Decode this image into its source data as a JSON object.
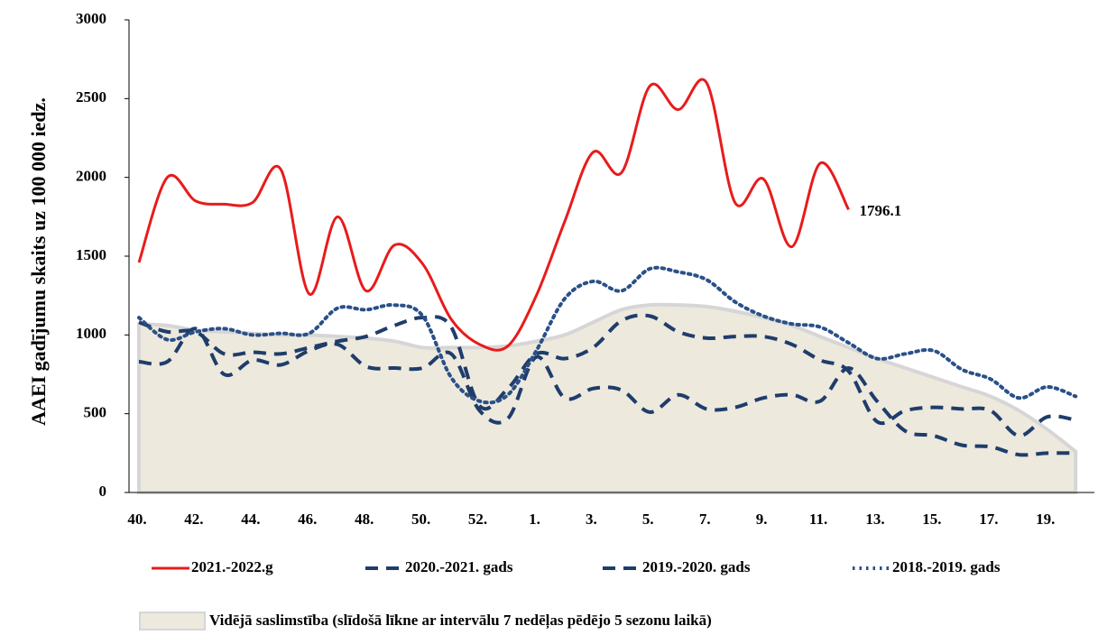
{
  "chart_data": {
    "type": "line",
    "y_label": "AAEI gadījumu skaits uz 100 000 iedz.",
    "categories": [
      "40.",
      null,
      "42.",
      null,
      "44.",
      null,
      "46.",
      null,
      "48.",
      null,
      "50.",
      null,
      "52.",
      null,
      "1.",
      null,
      "3.",
      null,
      "5.",
      null,
      "7.",
      null,
      "9.",
      null,
      "11.",
      null,
      "13.",
      null,
      "15.",
      null,
      "17.",
      null,
      "19.",
      null
    ],
    "ylim": [
      0,
      3000
    ],
    "yticks": [
      0,
      500,
      1000,
      1500,
      2000,
      2500,
      3000
    ],
    "series": [
      {
        "name": "2021.-2022.g",
        "color": "#e81b1b",
        "style": "solid",
        "values": [
          1460,
          2000,
          1850,
          1830,
          1840,
          2050,
          1260,
          1750,
          1280,
          1570,
          1450,
          1100,
          940,
          930,
          1250,
          1720,
          2160,
          2030,
          2580,
          2430,
          2600,
          1840,
          1990,
          1560,
          2090,
          1796.1,
          null,
          null,
          null,
          null,
          null,
          null,
          null,
          null
        ]
      },
      {
        "name": "2020.-2021. gads",
        "color": "#1f3d6b",
        "style": "dashed",
        "values": [
          830,
          830,
          1040,
          750,
          840,
          810,
          900,
          940,
          800,
          790,
          790,
          880,
          520,
          470,
          860,
          600,
          660,
          650,
          510,
          620,
          530,
          540,
          600,
          620,
          580,
          790,
          580,
          390,
          360,
          300,
          290,
          240,
          250,
          250
        ]
      },
      {
        "name": "2019.-2020. gads",
        "color": "#1f3d6b",
        "style": "dashed",
        "values": [
          1080,
          1020,
          1020,
          880,
          890,
          880,
          920,
          960,
          990,
          1060,
          1110,
          1050,
          550,
          660,
          880,
          850,
          920,
          1090,
          1120,
          1020,
          980,
          990,
          990,
          940,
          840,
          770,
          450,
          520,
          540,
          530,
          520,
          360,
          480,
          460
        ]
      },
      {
        "name": "2018.-2019. gads",
        "color": "#2a5087",
        "style": "dotted",
        "values": [
          1110,
          970,
          1020,
          1040,
          1000,
          1010,
          1010,
          1170,
          1160,
          1190,
          1120,
          730,
          580,
          620,
          900,
          1230,
          1340,
          1280,
          1420,
          1400,
          1350,
          1210,
          1120,
          1070,
          1050,
          950,
          850,
          880,
          900,
          780,
          720,
          600,
          670,
          610
        ]
      },
      {
        "name": "Vidējā saslimstība (slīdošā līkne ar intervālu 7 nedēļas pēdējo 5 sezonu laikā)",
        "color": "#ede9dd",
        "style": "area",
        "values": [
          1070,
          1060,
          1030,
          1020,
          1010,
          1000,
          1000,
          990,
          980,
          960,
          920,
          920,
          920,
          930,
          960,
          1000,
          1080,
          1160,
          1190,
          1190,
          1180,
          1150,
          1110,
          1060,
          990,
          920,
          850,
          790,
          730,
          670,
          610,
          520,
          400,
          260
        ]
      }
    ]
  }
}
